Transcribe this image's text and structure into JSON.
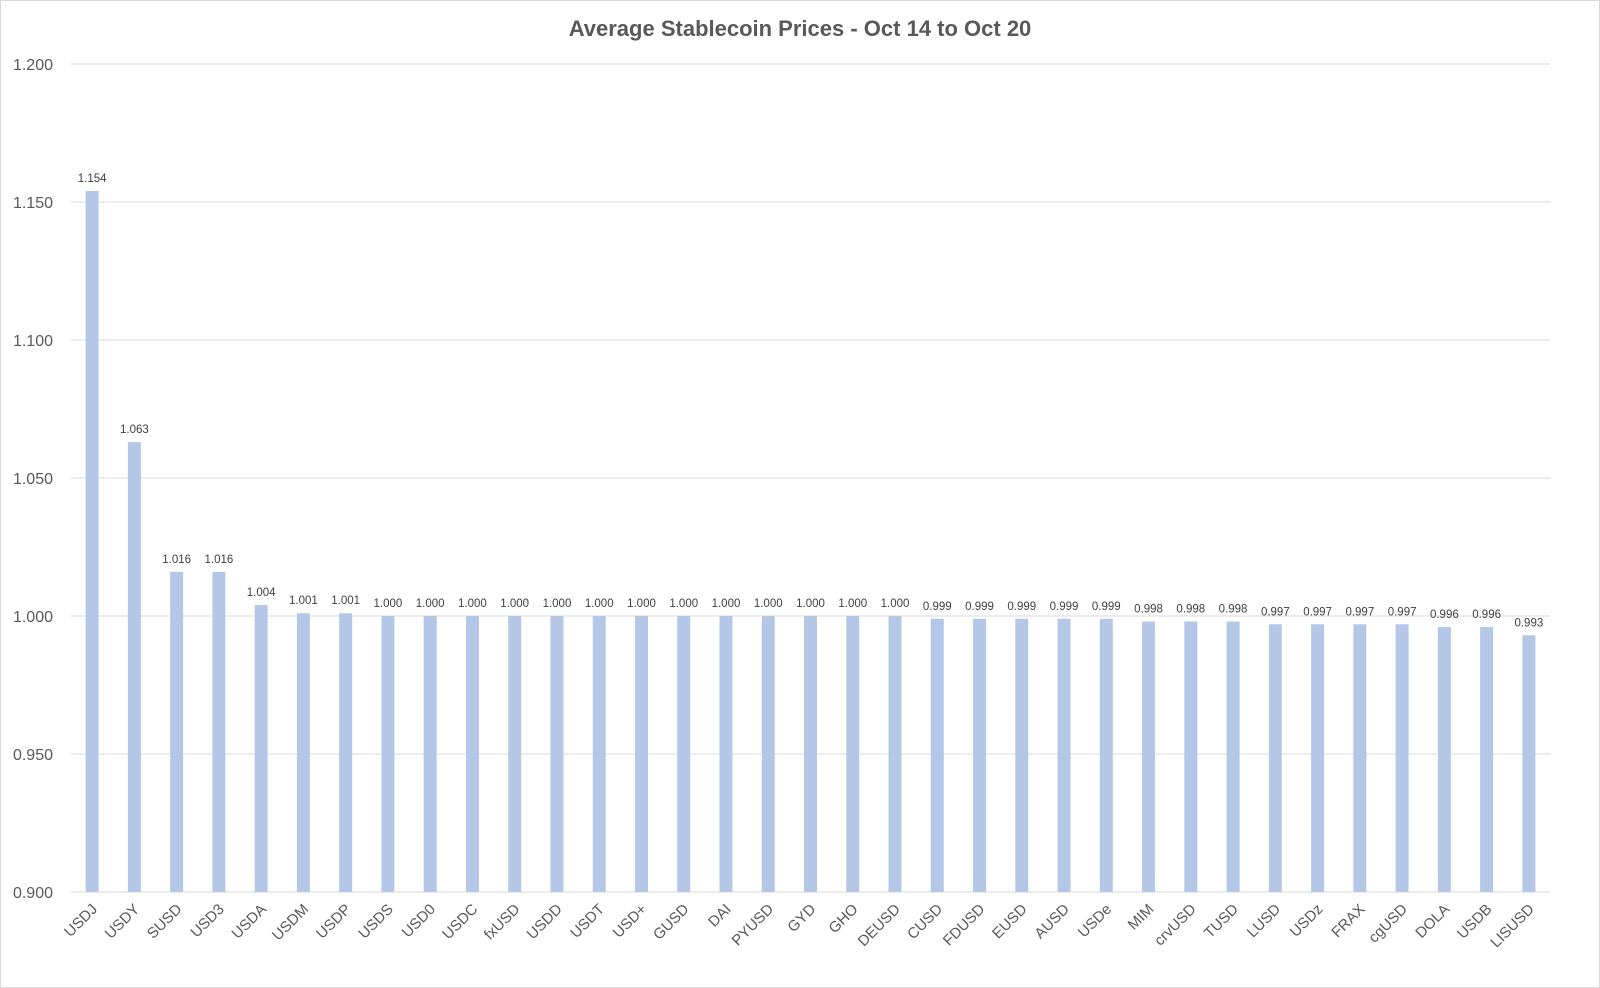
{
  "chart_data": {
    "type": "bar",
    "title": "Average Stablecoin Prices - Oct 14 to Oct 20",
    "xlabel": "",
    "ylabel": "",
    "ylim": [
      0.9,
      1.2
    ],
    "yticks": [
      "0.900",
      "0.950",
      "1.000",
      "1.050",
      "1.100",
      "1.150",
      "1.200"
    ],
    "grid": true,
    "legend": "none",
    "bar_color": "#b4c7e7",
    "categories": [
      "USDJ",
      "USDY",
      "SUSD",
      "USD3",
      "USDA",
      "USDM",
      "USDP",
      "USDS",
      "USD0",
      "USDC",
      "fxUSD",
      "USDD",
      "USDT",
      "USD+",
      "GUSD",
      "DAI",
      "PYUSD",
      "GYD",
      "GHO",
      "DEUSD",
      "CUSD",
      "FDUSD",
      "EUSD",
      "AUSD",
      "USDe",
      "MIM",
      "crvUSD",
      "TUSD",
      "LUSD",
      "USDz",
      "FRAX",
      "cgUSD",
      "DOLA",
      "USDB",
      "LISUSD"
    ],
    "values": [
      1.154,
      1.063,
      1.016,
      1.016,
      1.004,
      1.001,
      1.001,
      1.0,
      1.0,
      1.0,
      1.0,
      1.0,
      1.0,
      1.0,
      1.0,
      1.0,
      1.0,
      1.0,
      1.0,
      1.0,
      0.999,
      0.999,
      0.999,
      0.999,
      0.999,
      0.998,
      0.998,
      0.998,
      0.997,
      0.997,
      0.997,
      0.997,
      0.996,
      0.996,
      0.993
    ],
    "data_labels": [
      "1.154",
      "1.063",
      "1.016",
      "1.016",
      "1.004",
      "1.001",
      "1.001",
      "1.000",
      "1.000",
      "1.000",
      "1.000",
      "1.000",
      "1.000",
      "1.000",
      "1.000",
      "1.000",
      "1.000",
      "1.000",
      "1.000",
      "1.000",
      "0.999",
      "0.999",
      "0.999",
      "0.999",
      "0.999",
      "0.998",
      "0.998",
      "0.998",
      "0.997",
      "0.997",
      "0.997",
      "0.997",
      "0.996",
      "0.996",
      "0.993"
    ]
  }
}
